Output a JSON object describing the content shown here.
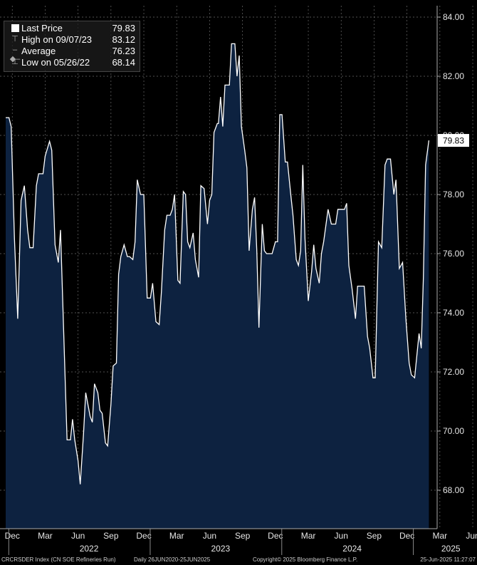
{
  "legend": {
    "items": [
      {
        "label": "Last Price",
        "value": "79.83",
        "icon": "solid-square-icon"
      },
      {
        "label": "High on 09/07/23",
        "value": "83.12",
        "icon": "high-marker-icon"
      },
      {
        "label": "Average",
        "value": "76.23",
        "icon": "average-marker-icon"
      },
      {
        "label": "Low on 05/26/22",
        "value": "68.14",
        "icon": "low-marker-icon"
      }
    ]
  },
  "footer": {
    "index": "CRCRSDER Index (CN SOE Refineries Run)",
    "range": "Daily 26JUN2020-25JUN2025",
    "copyright": "Copyright© 2025 Bloomberg Finance L.P.",
    "timestamp": "25-Jun-2025 11:27:07"
  },
  "colors": {
    "background": "#000000",
    "area_fill": "#0d2240",
    "line": "#ffffff",
    "last_price_box": "#ffffff"
  },
  "chart_data": {
    "type": "area",
    "title": "",
    "xlabel": "",
    "ylabel": "",
    "ylim": [
      66.5,
      84.4
    ],
    "y_ticks": [
      "68.00",
      "70.00",
      "72.00",
      "74.00",
      "76.00",
      "78.00",
      "80.00",
      "82.00",
      "84.00"
    ],
    "y_tick_values": [
      68,
      70,
      72,
      74,
      76,
      78,
      80,
      82,
      84
    ],
    "y_axis_side": "right",
    "grid": true,
    "legend_position": "top-left",
    "last_price_label": "79.83",
    "x_ticks": [
      {
        "label": "Dec",
        "t": 0.6
      },
      {
        "label": "Mar",
        "t": 3.6
      },
      {
        "label": "Jun",
        "t": 6.6
      },
      {
        "label": "Sep",
        "t": 9.6
      },
      {
        "label": "Dec",
        "t": 12.6
      },
      {
        "label": "Mar",
        "t": 15.6
      },
      {
        "label": "Jun",
        "t": 18.6
      },
      {
        "label": "Sep",
        "t": 21.6
      },
      {
        "label": "Dec",
        "t": 24.6
      },
      {
        "label": "Mar",
        "t": 27.6
      },
      {
        "label": "Jun",
        "t": 30.6
      },
      {
        "label": "Sep",
        "t": 33.6
      },
      {
        "label": "Dec",
        "t": 36.6
      },
      {
        "label": "Mar",
        "t": 39.6
      },
      {
        "label": "Jun",
        "t": 42.6
      }
    ],
    "year_labels": [
      {
        "label": "2022",
        "t": 7.6
      },
      {
        "label": "2023",
        "t": 19.6
      },
      {
        "label": "2024",
        "t": 31.6
      },
      {
        "label": "2025",
        "t": 40.6
      }
    ],
    "x_range": [
      0,
      44
    ],
    "series": [
      {
        "values": [
          [
            0.0,
            80.6
          ],
          [
            0.3,
            80.6
          ],
          [
            0.5,
            80.3
          ],
          [
            0.8,
            76.5
          ],
          [
            1.1,
            73.8
          ],
          [
            1.4,
            77.8
          ],
          [
            1.7,
            78.3
          ],
          [
            2.0,
            76.8
          ],
          [
            2.2,
            76.2
          ],
          [
            2.5,
            76.2
          ],
          [
            2.8,
            78.3
          ],
          [
            3.0,
            78.7
          ],
          [
            3.4,
            78.7
          ],
          [
            3.6,
            79.3
          ],
          [
            4.0,
            79.8
          ],
          [
            4.2,
            79.5
          ],
          [
            4.5,
            76.3
          ],
          [
            4.8,
            75.7
          ],
          [
            5.0,
            76.8
          ],
          [
            5.4,
            72.0
          ],
          [
            5.6,
            69.7
          ],
          [
            5.9,
            69.7
          ],
          [
            6.1,
            70.4
          ],
          [
            6.3,
            69.7
          ],
          [
            6.6,
            69.0
          ],
          [
            6.8,
            68.2
          ],
          [
            7.1,
            69.9
          ],
          [
            7.3,
            71.3
          ],
          [
            7.7,
            70.5
          ],
          [
            7.9,
            70.3
          ],
          [
            8.1,
            71.6
          ],
          [
            8.4,
            71.3
          ],
          [
            8.6,
            70.7
          ],
          [
            8.8,
            70.6
          ],
          [
            9.1,
            69.6
          ],
          [
            9.3,
            69.5
          ],
          [
            9.6,
            70.9
          ],
          [
            9.8,
            72.2
          ],
          [
            10.1,
            72.3
          ],
          [
            10.3,
            75.3
          ],
          [
            10.5,
            75.9
          ],
          [
            10.8,
            76.3
          ],
          [
            11.1,
            75.9
          ],
          [
            11.3,
            75.9
          ],
          [
            11.6,
            75.8
          ],
          [
            11.8,
            76.4
          ],
          [
            12.0,
            78.5
          ],
          [
            12.3,
            78.0
          ],
          [
            12.6,
            78.0
          ],
          [
            12.9,
            74.5
          ],
          [
            13.2,
            74.5
          ],
          [
            13.4,
            75.0
          ],
          [
            13.7,
            73.7
          ],
          [
            14.0,
            73.6
          ],
          [
            14.2,
            74.7
          ],
          [
            14.5,
            76.8
          ],
          [
            14.7,
            77.3
          ],
          [
            15.0,
            77.3
          ],
          [
            15.2,
            77.5
          ],
          [
            15.4,
            78.0
          ],
          [
            15.7,
            75.1
          ],
          [
            15.9,
            75.0
          ],
          [
            16.2,
            78.1
          ],
          [
            16.4,
            78.0
          ],
          [
            16.6,
            76.4
          ],
          [
            16.8,
            76.2
          ],
          [
            17.1,
            76.7
          ],
          [
            17.3,
            75.8
          ],
          [
            17.6,
            75.2
          ],
          [
            17.8,
            78.3
          ],
          [
            18.1,
            78.2
          ],
          [
            18.4,
            77.0
          ],
          [
            18.6,
            77.8
          ],
          [
            18.8,
            78.0
          ],
          [
            19.0,
            80.1
          ],
          [
            19.3,
            80.4
          ],
          [
            19.4,
            80.4
          ],
          [
            19.6,
            81.3
          ],
          [
            19.8,
            80.3
          ],
          [
            20.0,
            81.7
          ],
          [
            20.4,
            81.7
          ],
          [
            20.6,
            83.1
          ],
          [
            20.9,
            83.1
          ],
          [
            21.1,
            82.0
          ],
          [
            21.3,
            82.7
          ],
          [
            21.5,
            80.3
          ],
          [
            21.8,
            79.5
          ],
          [
            22.0,
            78.9
          ],
          [
            22.2,
            76.1
          ],
          [
            22.5,
            77.5
          ],
          [
            22.7,
            77.9
          ],
          [
            22.9,
            76.1
          ],
          [
            23.1,
            73.5
          ],
          [
            23.4,
            77.0
          ],
          [
            23.6,
            76.1
          ],
          [
            23.8,
            76.0
          ],
          [
            24.1,
            76.0
          ],
          [
            24.3,
            76.0
          ],
          [
            24.6,
            76.4
          ],
          [
            24.8,
            76.4
          ],
          [
            25.0,
            80.7
          ],
          [
            25.2,
            80.7
          ],
          [
            25.5,
            79.1
          ],
          [
            25.7,
            79.1
          ],
          [
            26.0,
            78.0
          ],
          [
            26.2,
            77.3
          ],
          [
            26.5,
            75.8
          ],
          [
            26.7,
            75.6
          ],
          [
            26.9,
            76.1
          ],
          [
            27.1,
            79.0
          ],
          [
            27.3,
            76.5
          ],
          [
            27.6,
            74.4
          ],
          [
            27.9,
            75.4
          ],
          [
            28.1,
            76.3
          ],
          [
            28.3,
            75.5
          ],
          [
            28.6,
            75.0
          ],
          [
            28.8,
            76.0
          ],
          [
            29.0,
            76.4
          ],
          [
            29.4,
            77.5
          ],
          [
            29.7,
            77.0
          ],
          [
            30.1,
            77.0
          ],
          [
            30.3,
            77.5
          ],
          [
            30.9,
            77.5
          ],
          [
            31.1,
            77.7
          ],
          [
            31.3,
            75.6
          ],
          [
            31.6,
            74.8
          ],
          [
            31.9,
            73.8
          ],
          [
            32.1,
            74.9
          ],
          [
            32.7,
            74.9
          ],
          [
            33.0,
            73.2
          ],
          [
            33.2,
            72.8
          ],
          [
            33.5,
            71.8
          ],
          [
            33.7,
            71.8
          ],
          [
            34.0,
            76.4
          ],
          [
            34.3,
            76.2
          ],
          [
            34.6,
            79.0
          ],
          [
            34.8,
            79.2
          ],
          [
            35.1,
            79.2
          ],
          [
            35.4,
            78.0
          ],
          [
            35.6,
            78.5
          ],
          [
            35.9,
            75.5
          ],
          [
            36.2,
            75.7
          ],
          [
            36.5,
            73.8
          ],
          [
            36.8,
            72.3
          ],
          [
            37.0,
            71.9
          ],
          [
            37.3,
            71.8
          ],
          [
            37.7,
            73.3
          ],
          [
            37.9,
            72.8
          ],
          [
            38.1,
            75.2
          ],
          [
            38.3,
            79.0
          ],
          [
            38.6,
            79.83
          ]
        ]
      }
    ]
  }
}
